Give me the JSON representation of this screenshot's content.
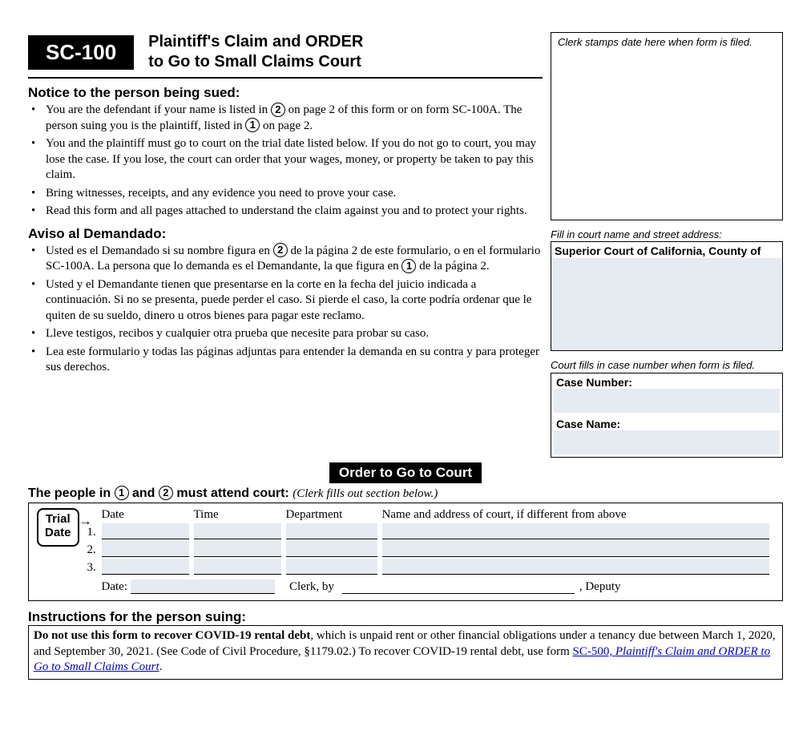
{
  "form_code": "SC-100",
  "form_title_l1": "Plaintiff's Claim and ORDER",
  "form_title_l2": "to Go to Small Claims Court",
  "clerk_stamp_label": "Clerk stamps date here when form is filed.",
  "notice_en_heading": "Notice to the person being sued:",
  "en_b1a": "You are the defendant if your name is listed in ",
  "en_b1b": " on page 2 of this form or on form SC-100A. The person suing you is the plaintiff, listed in ",
  "en_b1c": " on page 2.",
  "en_b2": "You and the plaintiff must go to court on the trial date listed below. If you do not go to court, you may lose the case. If you lose, the court can order that your wages, money, or property be taken to pay this claim.",
  "en_b3": "Bring witnesses, receipts, and any evidence you need to prove your case.",
  "en_b4": "Read this form and all pages attached to understand the claim against you and to protect your rights.",
  "notice_es_heading": "Aviso al Demandado:",
  "es_b1a": "Usted es el Demandado si su nombre figura en ",
  "es_b1b": " de la página 2 de este formulario, o en el formulario SC-100A. La persona que lo demanda es el Demandante, la que figura en ",
  "es_b1c": " de la página 2.",
  "es_b2": "Usted y el Demandante tienen que presentarse en la corte en la fecha del juicio indicada a continuación. Si no se presenta, puede perder el caso. Si pierde el caso, la corte podría ordenar que le quiten de su sueldo, dinero u otros bienes para pagar este reclamo.",
  "es_b3": "Lleve testigos, recibos y cualquier otra prueba que necesite para probar su caso.",
  "es_b4": "Lea este formulario y todas las páginas adjuntas para entender la demanda en su contra y para proteger sus derechos.",
  "court_label": "Fill in court name and street address:",
  "court_headline": "Superior Court of California, County of",
  "case_label": "Court fills in case number when form is filed.",
  "case_number_label": "Case Number:",
  "case_name_label": "Case Name:",
  "order_bar": "Order to Go to Court",
  "attend_a": "The people in ",
  "attend_b": " and ",
  "attend_c": " must attend court: ",
  "attend_ital": "(Clerk fills out section below.)",
  "trial_l1": "Trial",
  "trial_l2": "Date",
  "col_date": "Date",
  "col_time": "Time",
  "col_dept": "Department",
  "col_name": "Name and address of court, if different from above",
  "row1": "1.",
  "row2": "2.",
  "row3": "3.",
  "date_label": "Date:",
  "clerk_by": "Clerk, by",
  "deputy": ", Deputy",
  "instr_heading": "Instructions for the person suing:",
  "covid_bold": "Do not use this form to recover COVID-19 rental debt",
  "covid_rest": ", which is unpaid rent or other financial obligations under a tenancy due between March 1, 2020, and September 30, 2021. (See Code of Civil Procedure, §1179.02.) To recover COVID-19 rental debt, use form ",
  "covid_link_code": "SC-500, ",
  "covid_link_title": "Plaintiff's Claim and ORDER to Go to Small Claims Court",
  "n1": "1",
  "n2": "2",
  "colors": {
    "fill_bg": "#e6eaf1",
    "link": "#0000cc"
  }
}
